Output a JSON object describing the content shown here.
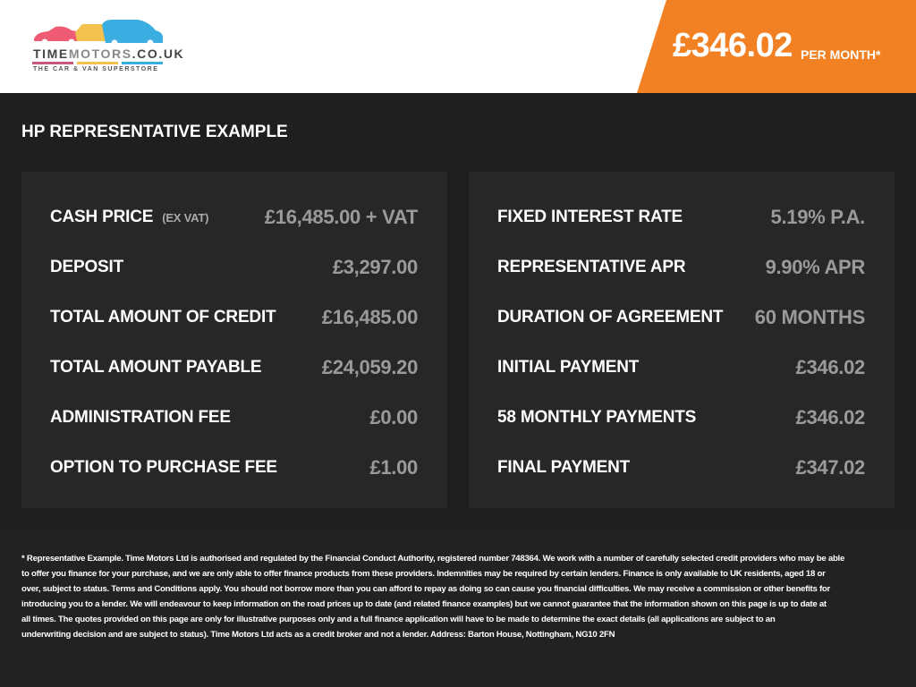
{
  "header": {
    "logo_text": "TIMEMOTORS.CO.UK",
    "logo_tagline": "THE CAR & VAN SUPERSTORE",
    "price": "£346.02",
    "per_month": "PER MONTH*",
    "accent": "#f28123"
  },
  "title": "HP REPRESENTATIVE EXAMPLE",
  "left": [
    {
      "label": "CASH PRICE",
      "note": "(EX VAT)",
      "value": "£16,485.00 + VAT"
    },
    {
      "label": "DEPOSIT",
      "value": "£3,297.00"
    },
    {
      "label": "TOTAL AMOUNT OF CREDIT",
      "value": "£16,485.00"
    },
    {
      "label": "TOTAL AMOUNT PAYABLE",
      "value": "£24,059.20"
    },
    {
      "label": "ADMINISTRATION FEE",
      "value": "£0.00"
    },
    {
      "label": "OPTION TO PURCHASE FEE",
      "value": "£1.00"
    }
  ],
  "right": [
    {
      "label": "FIXED INTEREST RATE",
      "value": "5.19% P.A."
    },
    {
      "label": "REPRESENTATIVE APR",
      "value": "9.90% APR"
    },
    {
      "label": "DURATION OF AGREEMENT",
      "value": "60 MONTHS"
    },
    {
      "label": "INITIAL PAYMENT",
      "value": "£346.02"
    },
    {
      "label": "58 MONTHLY PAYMENTS",
      "value": "£346.02"
    },
    {
      "label": "FINAL PAYMENT",
      "value": "£347.02"
    }
  ],
  "disclaimer": [
    "* Representative Example. Time Motors Ltd is authorised and regulated by the Financial Conduct Authority, registered number 748364. We work with a number of carefully selected credit providers who may be able",
    "to offer you finance for your purchase, and we are only able to offer finance products from these providers. Indemnities may be required by certain lenders. Finance is only available to UK residents, aged 18 or",
    "over, subject to status. Terms and Conditions apply. You should not borrow more than you can afford to repay as doing so can cause you financial difficulties. We may receive a commission or other benefits for",
    "introducing you to a lender. We will endeavour to keep information on the road prices up to date (and related finance examples) but we cannot guarantee that the information shown on this page is up to date at",
    "all times. The quotes provided on this page are only for illustrative purposes only and a full finance application will have to be made to determine the exact details (all applications are subject to an",
    "underwriting decision and are subject to status). Time Motors Ltd acts as a credit broker and not a lender. Address: Barton House, Nottingham, NG10 2FN"
  ]
}
